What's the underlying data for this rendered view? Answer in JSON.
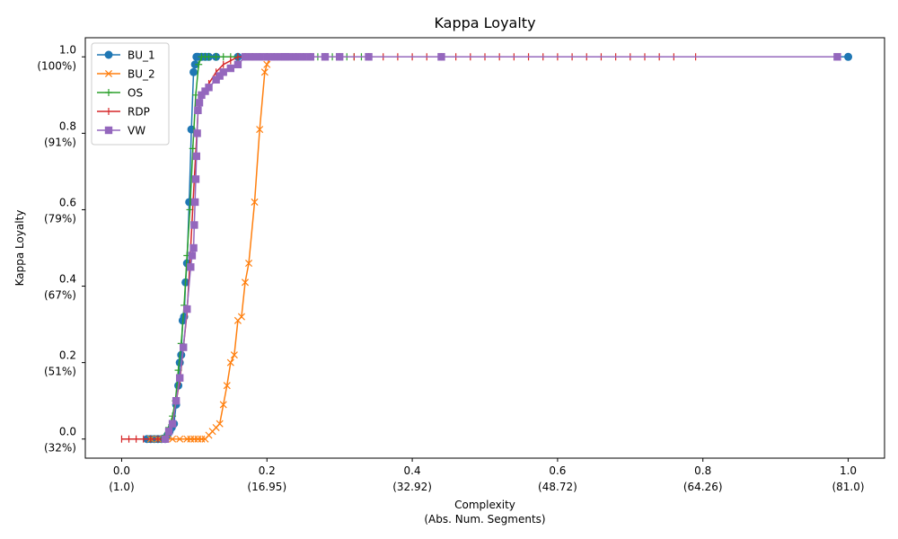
{
  "chart_data": {
    "type": "line",
    "title": "Kappa Loyalty",
    "xlabel_line1": "Complexity",
    "xlabel_line2": "(Abs. Num. Segments)",
    "ylabel": "Kappa Loyalty",
    "xlim": [
      -0.05,
      1.05
    ],
    "ylim": [
      -0.05,
      1.05
    ],
    "grid": false,
    "legend_position": "top-left",
    "x_ticks": [
      {
        "value": 0.0,
        "label": "0.0",
        "sublabel": "(1.0)"
      },
      {
        "value": 0.2,
        "label": "0.2",
        "sublabel": "(16.95)"
      },
      {
        "value": 0.4,
        "label": "0.4",
        "sublabel": "(32.92)"
      },
      {
        "value": 0.6,
        "label": "0.6",
        "sublabel": "(48.72)"
      },
      {
        "value": 0.8,
        "label": "0.8",
        "sublabel": "(64.26)"
      },
      {
        "value": 1.0,
        "label": "1.0",
        "sublabel": "(81.0)"
      }
    ],
    "y_ticks": [
      {
        "value": 0.0,
        "label": "0.0",
        "sublabel": "(32%)"
      },
      {
        "value": 0.2,
        "label": "0.2",
        "sublabel": "(51%)"
      },
      {
        "value": 0.4,
        "label": "0.4",
        "sublabel": "(67%)"
      },
      {
        "value": 0.6,
        "label": "0.6",
        "sublabel": "(79%)"
      },
      {
        "value": 0.8,
        "label": "0.8",
        "sublabel": "(91%)"
      },
      {
        "value": 1.0,
        "label": "1.0",
        "sublabel": "(100%)"
      }
    ],
    "series": [
      {
        "name": "BU_1",
        "color": "#1f77b4",
        "marker": "circle",
        "x": [
          0.035,
          0.04,
          0.045,
          0.05,
          0.055,
          0.06,
          0.063,
          0.066,
          0.069,
          0.072,
          0.075,
          0.078,
          0.08,
          0.082,
          0.084,
          0.086,
          0.088,
          0.09,
          0.093,
          0.096,
          0.099,
          0.101,
          0.103,
          0.105,
          0.11,
          0.115,
          0.12,
          0.13,
          0.16,
          1.0
        ],
        "y": [
          0.0,
          0.0,
          0.0,
          0.0,
          0.0,
          0.0,
          0.01,
          0.02,
          0.03,
          0.04,
          0.09,
          0.14,
          0.2,
          0.22,
          0.31,
          0.32,
          0.41,
          0.46,
          0.62,
          0.81,
          0.96,
          0.98,
          1.0,
          1.0,
          1.0,
          1.0,
          1.0,
          1.0,
          1.0,
          1.0
        ]
      },
      {
        "name": "BU_2",
        "color": "#ff7f0e",
        "marker": "x",
        "x": [
          0.04,
          0.05,
          0.06,
          0.07,
          0.08,
          0.09,
          0.095,
          0.1,
          0.105,
          0.11,
          0.115,
          0.12,
          0.125,
          0.13,
          0.135,
          0.14,
          0.145,
          0.15,
          0.155,
          0.16,
          0.165,
          0.17,
          0.175,
          0.183,
          0.19,
          0.197,
          0.2,
          0.205,
          0.21,
          0.22,
          0.24,
          0.25
        ],
        "y": [
          0.0,
          0.0,
          0.0,
          0.0,
          0.0,
          0.0,
          0.0,
          0.0,
          0.0,
          0.0,
          0.0,
          0.01,
          0.02,
          0.03,
          0.04,
          0.09,
          0.14,
          0.2,
          0.22,
          0.31,
          0.32,
          0.41,
          0.46,
          0.62,
          0.81,
          0.96,
          0.98,
          1.0,
          1.0,
          1.0,
          1.0,
          1.0
        ]
      },
      {
        "name": "OS",
        "color": "#2ca02c",
        "marker": "plus",
        "x": [
          0.04,
          0.05,
          0.055,
          0.06,
          0.065,
          0.07,
          0.074,
          0.078,
          0.082,
          0.086,
          0.09,
          0.094,
          0.098,
          0.102,
          0.106,
          0.11,
          0.115,
          0.12,
          0.13,
          0.14,
          0.15,
          0.16,
          0.17,
          0.18,
          0.19,
          0.2,
          0.21,
          0.22,
          0.23,
          0.24,
          0.25,
          0.26,
          0.27,
          0.28,
          0.29,
          0.3,
          0.31,
          0.32,
          0.33,
          0.34
        ],
        "y": [
          0.0,
          0.0,
          0.0,
          0.01,
          0.03,
          0.06,
          0.1,
          0.18,
          0.25,
          0.35,
          0.48,
          0.6,
          0.76,
          0.9,
          0.98,
          1.0,
          1.0,
          1.0,
          1.0,
          1.0,
          1.0,
          1.0,
          1.0,
          1.0,
          1.0,
          1.0,
          1.0,
          1.0,
          1.0,
          1.0,
          1.0,
          1.0,
          1.0,
          1.0,
          1.0,
          1.0,
          1.0,
          1.0,
          1.0,
          1.0
        ]
      },
      {
        "name": "RDP",
        "color": "#d62728",
        "marker": "vline",
        "x": [
          0.0,
          0.01,
          0.02,
          0.03,
          0.04,
          0.05,
          0.06,
          0.07,
          0.075,
          0.08,
          0.085,
          0.09,
          0.095,
          0.1,
          0.105,
          0.11,
          0.12,
          0.13,
          0.14,
          0.15,
          0.16,
          0.17,
          0.18,
          0.2,
          0.22,
          0.24,
          0.26,
          0.28,
          0.3,
          0.32,
          0.34,
          0.36,
          0.38,
          0.4,
          0.42,
          0.44,
          0.46,
          0.48,
          0.5,
          0.52,
          0.54,
          0.56,
          0.58,
          0.6,
          0.62,
          0.64,
          0.66,
          0.68,
          0.7,
          0.72,
          0.74,
          0.76,
          0.79
        ],
        "y": [
          0.0,
          0.0,
          0.0,
          0.0,
          0.0,
          0.0,
          0.0,
          0.04,
          0.1,
          0.15,
          0.24,
          0.33,
          0.5,
          0.68,
          0.85,
          0.9,
          0.93,
          0.96,
          0.98,
          0.99,
          1.0,
          1.0,
          1.0,
          1.0,
          1.0,
          1.0,
          1.0,
          1.0,
          1.0,
          1.0,
          1.0,
          1.0,
          1.0,
          1.0,
          1.0,
          1.0,
          1.0,
          1.0,
          1.0,
          1.0,
          1.0,
          1.0,
          1.0,
          1.0,
          1.0,
          1.0,
          1.0,
          1.0,
          1.0,
          1.0,
          1.0,
          1.0,
          1.0
        ]
      },
      {
        "name": "VW",
        "color": "#9467bd",
        "marker": "square",
        "x": [
          0.06,
          0.065,
          0.07,
          0.075,
          0.08,
          0.085,
          0.09,
          0.095,
          0.097,
          0.099,
          0.1,
          0.101,
          0.102,
          0.103,
          0.104,
          0.105,
          0.107,
          0.11,
          0.115,
          0.12,
          0.13,
          0.135,
          0.14,
          0.15,
          0.16,
          0.17,
          0.18,
          0.19,
          0.2,
          0.21,
          0.22,
          0.225,
          0.23,
          0.24,
          0.25,
          0.26,
          0.28,
          0.3,
          0.34,
          0.44,
          0.985
        ],
        "y": [
          0.0,
          0.02,
          0.04,
          0.1,
          0.16,
          0.24,
          0.34,
          0.45,
          0.48,
          0.5,
          0.56,
          0.62,
          0.68,
          0.74,
          0.8,
          0.86,
          0.88,
          0.9,
          0.91,
          0.92,
          0.94,
          0.95,
          0.96,
          0.97,
          0.98,
          1.0,
          1.0,
          1.0,
          1.0,
          1.0,
          1.0,
          1.0,
          1.0,
          1.0,
          1.0,
          1.0,
          1.0,
          1.0,
          1.0,
          1.0,
          1.0
        ]
      }
    ]
  }
}
